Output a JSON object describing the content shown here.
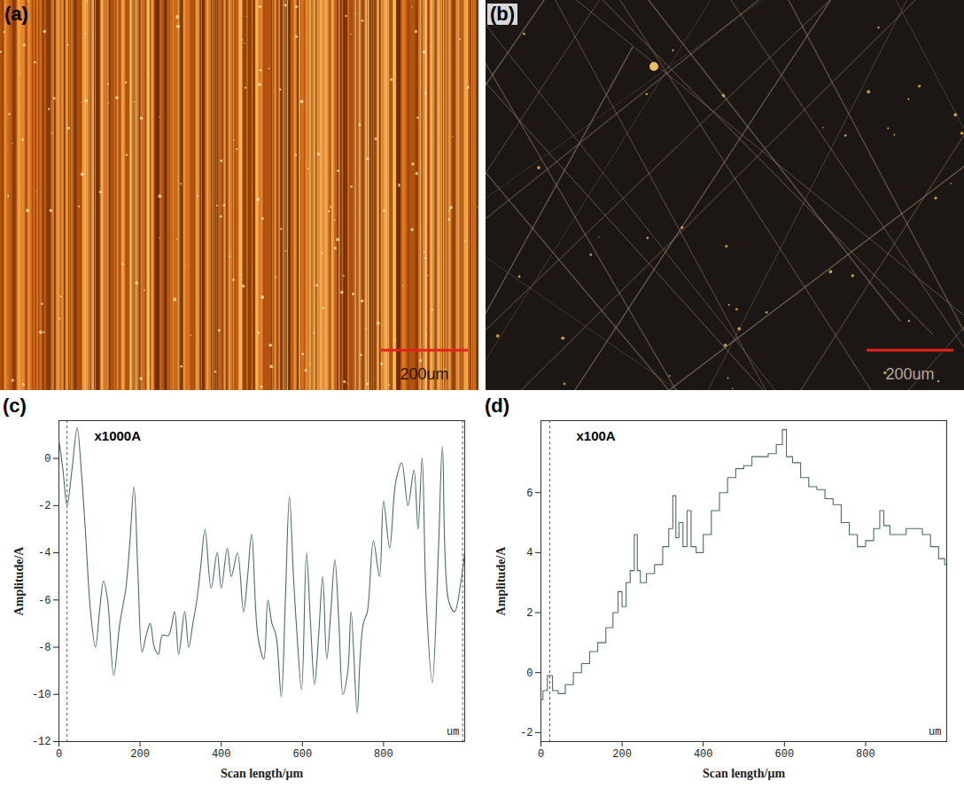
{
  "images": [
    {
      "label": "(a)",
      "scale_bar": "200um"
    },
    {
      "label": "(b)",
      "scale_bar": "200um"
    }
  ],
  "chart_data": [
    {
      "type": "line",
      "label": "(c)",
      "annotation": "x1000A",
      "unit_note": "um",
      "x_label": "Scan length/μm",
      "y_label": "Amplitude/A",
      "xlim": [
        0,
        1000
      ],
      "xticks": [
        0,
        200,
        400,
        600,
        800
      ],
      "ylim": [
        -12,
        1.6
      ],
      "yticks": [
        -12,
        -10,
        -8,
        -6,
        -4,
        -2,
        0
      ],
      "cursor_lines": [
        20,
        995
      ],
      "color": "#4d6b6b",
      "line_style": "solid",
      "x": [
        0,
        10,
        20,
        32,
        45,
        55,
        65,
        78,
        90,
        100,
        110,
        120,
        135,
        150,
        165,
        175,
        185,
        195,
        205,
        215,
        225,
        235,
        245,
        255,
        270,
        285,
        295,
        310,
        320,
        330,
        340,
        350,
        360,
        375,
        390,
        400,
        415,
        425,
        440,
        455,
        465,
        475,
        490,
        505,
        515,
        525,
        535,
        548,
        558,
        568,
        578,
        585,
        598,
        610,
        620,
        630,
        640,
        650,
        660,
        670,
        680,
        690,
        700,
        712,
        720,
        735,
        742,
        750,
        760,
        775,
        790,
        800,
        815,
        830,
        845,
        860,
        875,
        885,
        895,
        905,
        920,
        935,
        945,
        960,
        975,
        990,
        1000
      ],
      "values": [
        0.8,
        -0.5,
        -2,
        -0.5,
        1.3,
        -0.5,
        -3,
        -6.5,
        -8,
        -6.5,
        -5.2,
        -6,
        -9.2,
        -7,
        -5.5,
        -3.5,
        -1.2,
        -5,
        -8.2,
        -7.5,
        -7,
        -8,
        -8.3,
        -7.5,
        -7.5,
        -6.5,
        -8.3,
        -6.5,
        -8,
        -7,
        -6,
        -4.5,
        -3,
        -5.5,
        -4,
        -5.5,
        -3.8,
        -5,
        -4,
        -6.5,
        -5,
        -3.2,
        -7.5,
        -8.5,
        -6,
        -7,
        -7.5,
        -10.1,
        -6,
        -1.6,
        -5,
        -7,
        -9.8,
        -4,
        -7,
        -9.6,
        -7.5,
        -5,
        -8.5,
        -6.5,
        -4.3,
        -7,
        -10,
        -9,
        -6.5,
        -10.8,
        -8.5,
        -7,
        -6.5,
        -3.5,
        -5,
        -1.8,
        -3.8,
        -1,
        -0.2,
        -2,
        -0.5,
        -3,
        0,
        -6,
        -9.5,
        -4,
        0.5,
        -6,
        -6.5,
        -5.3,
        -4
      ]
    },
    {
      "type": "line",
      "label": "(d)",
      "annotation": "x100A",
      "unit_note": "um",
      "x_label": "Scan length/μm",
      "y_label": "Amplitude/A",
      "xlim": [
        0,
        1000
      ],
      "xticks": [
        0,
        200,
        400,
        600,
        800
      ],
      "ylim": [
        -2.3,
        8.4
      ],
      "yticks": [
        -2,
        0,
        2,
        4,
        6
      ],
      "cursor_lines": [
        22
      ],
      "color": "#4d6b6b",
      "line_style": "step",
      "x": [
        0,
        10,
        22,
        35,
        50,
        70,
        90,
        110,
        130,
        150,
        170,
        185,
        195,
        205,
        215,
        225,
        235,
        240,
        250,
        270,
        290,
        310,
        320,
        330,
        335,
        345,
        355,
        365,
        375,
        390,
        410,
        430,
        450,
        470,
        490,
        510,
        530,
        550,
        570,
        590,
        600,
        610,
        630,
        650,
        670,
        690,
        710,
        730,
        750,
        770,
        790,
        810,
        830,
        840,
        850,
        870,
        890,
        910,
        930,
        950,
        970,
        990,
        1000
      ],
      "values": [
        -0.9,
        -0.6,
        -0.1,
        -0.6,
        -0.7,
        -0.4,
        0,
        0.3,
        0.7,
        1,
        1.5,
        2,
        2.7,
        2.2,
        3,
        3.4,
        4.6,
        3.4,
        3,
        3.3,
        3.6,
        4.2,
        4.8,
        5.9,
        4.5,
        5,
        4.2,
        5.4,
        4.2,
        4,
        4.6,
        5.4,
        6,
        6.5,
        6.8,
        6.9,
        7.2,
        7.2,
        7.3,
        7.6,
        8.1,
        7.2,
        7,
        6.5,
        6.2,
        6.1,
        5.8,
        5.6,
        5,
        4.6,
        4.2,
        4.4,
        4.8,
        5.4,
        4.9,
        4.6,
        4.6,
        4.8,
        4.8,
        4.6,
        4.2,
        3.8,
        3.6
      ]
    }
  ]
}
